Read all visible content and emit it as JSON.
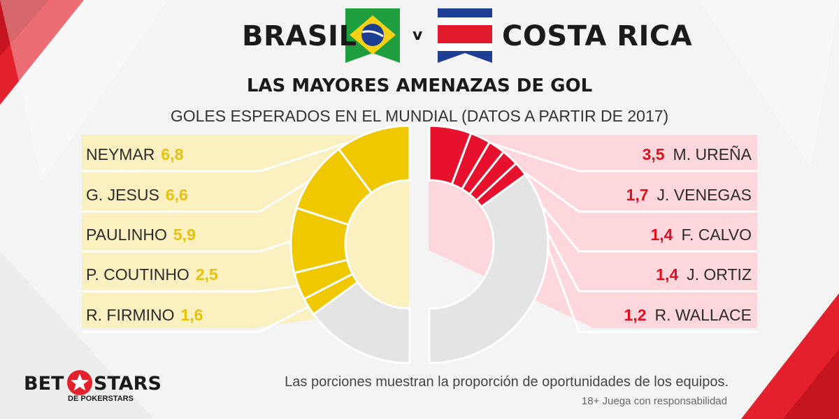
{
  "header": {
    "team_left": "BRASIL",
    "vs": "v",
    "team_right": "COSTA RICA",
    "title": "LAS MAYORES AMENAZAS DE GOL",
    "subtitle": "GOLES ESPERADOS EN EL MUNDIAL (DATOS A PARTIR DE 2017)"
  },
  "colors": {
    "brasil": "#f0c800",
    "brasil_panel": "#faf0c0",
    "costa_rica": "#e8112d",
    "costa_rica_panel": "#fdd7dc",
    "remainder": "#e4e4e4"
  },
  "chart_data": [
    {
      "type": "pie",
      "series_label": "BRASIL",
      "categories": [
        "NEYMAR",
        "G. JESUS",
        "PAULINHO",
        "P. COUTINHO",
        "R. FIRMINO"
      ],
      "values": [
        6.8,
        6.6,
        5.9,
        2.5,
        1.6
      ],
      "value_labels": [
        "6,8",
        "6,6",
        "5,9",
        "2,5",
        "1,6"
      ],
      "team_share": 0.7
    },
    {
      "type": "pie",
      "series_label": "COSTA RICA",
      "categories": [
        "M. UREÑA",
        "J. VENEGAS",
        "F. CALVO",
        "J. ORTIZ",
        "R. WALLACE"
      ],
      "values": [
        3.5,
        1.7,
        1.4,
        1.4,
        1.2
      ],
      "value_labels": [
        "3,5",
        "1,7",
        "1,4",
        "1,4",
        "1,2"
      ],
      "team_share": 0.3
    }
  ],
  "footer": {
    "note": "Las porciones muestran la proporción de oportunidades de los equipos.",
    "disclaimer": "18+ Juega con responsabilidad",
    "logo_left": "BET",
    "logo_right": "STARS",
    "logo_sub": "DE POKERSTARS"
  }
}
